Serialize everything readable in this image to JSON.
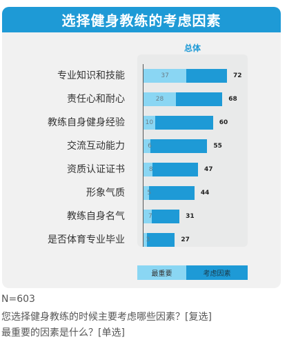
{
  "title": "选择健身教练的考虑因素",
  "series_header": "总体",
  "colors": {
    "accent": "#1e9ad6",
    "light": "#8ad6f3"
  },
  "chart_data": {
    "type": "bar",
    "orientation": "horizontal",
    "categories": [
      "专业知识和技能",
      "责任心和耐心",
      "教练自身健身经验",
      "交流互动能力",
      "资质认证证书",
      "形象气质",
      "教练自身名气",
      "是否体育专业毕业"
    ],
    "series": [
      {
        "name": "最重要",
        "values": [
          37,
          28,
          10,
          6,
          8,
          5,
          7,
          3
        ]
      },
      {
        "name": "考虑因素",
        "values": [
          72,
          68,
          60,
          55,
          47,
          44,
          31,
          27
        ]
      }
    ],
    "legend": [
      "最重要",
      "考虑因素"
    ],
    "legend_position": "bottom",
    "xlim": [
      0,
      100
    ]
  },
  "footnotes": [
    "N=603",
    "您选择健身教练的时候主要考虑哪些因素？[复选]",
    "最重要的因素是什么？[单选]"
  ]
}
